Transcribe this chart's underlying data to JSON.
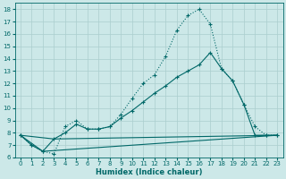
{
  "xlabel": "Humidex (Indice chaleur)",
  "background_color": "#cce8e8",
  "grid_color": "#aacece",
  "line_color": "#006868",
  "xlim": [
    -0.5,
    23.5
  ],
  "ylim": [
    6,
    18.5
  ],
  "xticks": [
    0,
    1,
    2,
    3,
    4,
    5,
    6,
    7,
    8,
    9,
    10,
    11,
    12,
    13,
    14,
    15,
    16,
    17,
    18,
    19,
    20,
    21,
    22,
    23
  ],
  "yticks": [
    6,
    7,
    8,
    9,
    10,
    11,
    12,
    13,
    14,
    15,
    16,
    17,
    18
  ],
  "series1_x": [
    0,
    1,
    2,
    3,
    4,
    5,
    6,
    7,
    8,
    9,
    10,
    11,
    12,
    13,
    14,
    15,
    16,
    17,
    18,
    19,
    20,
    21,
    22,
    23
  ],
  "series1_y": [
    7.8,
    7.0,
    6.5,
    6.3,
    8.5,
    9.0,
    8.3,
    8.3,
    8.5,
    9.5,
    10.8,
    12.0,
    12.7,
    14.2,
    16.3,
    17.5,
    18.0,
    16.8,
    13.2,
    12.2,
    10.3,
    8.5,
    7.8,
    7.8
  ],
  "series2_x": [
    0,
    1,
    2,
    3,
    4,
    5,
    6,
    7,
    8,
    9,
    10,
    11,
    12,
    13,
    14,
    15,
    16,
    17,
    18,
    19,
    20,
    21,
    22,
    23
  ],
  "series2_y": [
    7.8,
    7.0,
    6.5,
    7.5,
    8.0,
    8.7,
    8.3,
    8.3,
    8.5,
    9.2,
    9.8,
    10.5,
    11.2,
    11.8,
    12.5,
    13.0,
    13.5,
    14.5,
    13.2,
    12.2,
    10.3,
    7.8,
    7.8,
    7.8
  ],
  "series3_x": [
    0,
    3,
    23
  ],
  "series3_y": [
    7.8,
    7.5,
    7.8
  ],
  "series4_x": [
    0,
    2,
    23
  ],
  "series4_y": [
    7.8,
    6.5,
    7.8
  ]
}
